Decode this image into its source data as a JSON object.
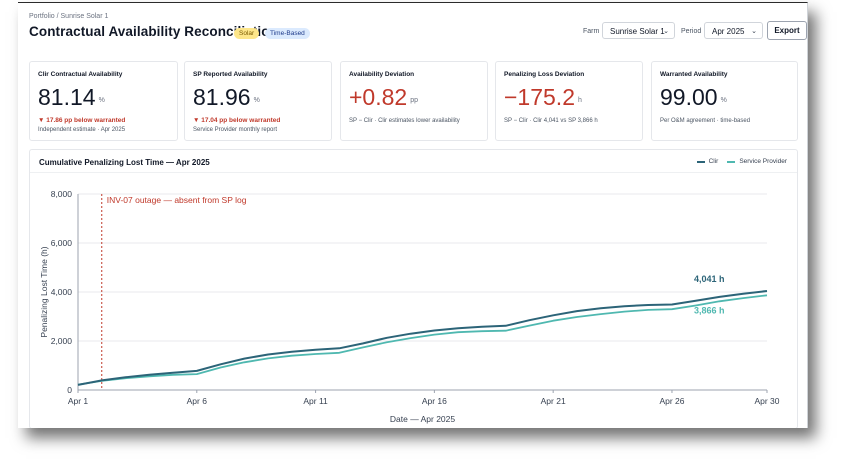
{
  "header": {
    "breadcrumb": "Portfolio / Sunrise Solar 1",
    "title": "Contractual Availability Reconciliation",
    "badges": [
      "Solar",
      "Time-Based"
    ]
  },
  "filters": {
    "farm_label": "Farm",
    "farm_value": "Sunrise Solar 1",
    "period_label": "Period",
    "period_value": "Apr 2025",
    "export_label": "Export"
  },
  "kpis": [
    {
      "label": "Clir Contractual Availability",
      "value": "81.14",
      "unit": "%",
      "delta": "▼ 17.86 pp below warranted",
      "sub": "Independent estimate · Apr 2025"
    },
    {
      "label": "SP Reported Availability",
      "value": "81.96",
      "unit": "%",
      "delta": "▼ 17.04 pp below warranted",
      "sub": "Service Provider monthly report"
    },
    {
      "label": "Availability Deviation",
      "value": "+0.82",
      "unit": "pp",
      "sub": "SP − Clir · Clir estimates lower availability"
    },
    {
      "label": "Penalizing Loss Deviation",
      "value": "−175.2",
      "unit": "h",
      "sub": "SP − Clir · Clir 4,041 vs SP 3,866 h"
    },
    {
      "label": "Warranted Availability",
      "value": "99.00",
      "unit": "%",
      "sub": "Per O&M agreement · time-based"
    }
  ],
  "colors": {
    "clir": "#2c6478",
    "service_provider": "#4fb8b0",
    "negative": "#c0392b"
  },
  "chart_data": {
    "type": "line",
    "title": "Cumulative Penalizing Lost Time — Apr 2025",
    "xlabel": "Date — Apr 2025",
    "ylabel": "Penalizing Lost Time (h)",
    "ylim": [
      0,
      8000
    ],
    "yticks": [
      "0",
      "2,000",
      "4,000",
      "6,000",
      "8,000"
    ],
    "xticks": [
      "Apr 1",
      "Apr 6",
      "Apr 11",
      "Apr 16",
      "Apr 21",
      "Apr 26",
      "Apr 30"
    ],
    "x": [
      1,
      2,
      3,
      4,
      5,
      6,
      7,
      8,
      9,
      10,
      11,
      12,
      13,
      14,
      15,
      16,
      17,
      18,
      19,
      20,
      21,
      22,
      23,
      24,
      25,
      26,
      27,
      28,
      29,
      30
    ],
    "series": [
      {
        "name": "Clir",
        "values": [
          210,
          390,
          520,
          620,
          700,
          780,
          1050,
          1280,
          1450,
          1560,
          1640,
          1700,
          1900,
          2130,
          2300,
          2430,
          2520,
          2580,
          2620,
          2850,
          3050,
          3220,
          3340,
          3420,
          3470,
          3490,
          3640,
          3800,
          3930,
          4041
        ]
      },
      {
        "name": "Service Provider",
        "values": [
          220,
          370,
          480,
          560,
          620,
          650,
          920,
          1130,
          1290,
          1400,
          1470,
          1520,
          1740,
          1950,
          2120,
          2260,
          2360,
          2400,
          2420,
          2630,
          2830,
          2980,
          3100,
          3200,
          3270,
          3300,
          3450,
          3620,
          3750,
          3866
        ]
      }
    ],
    "end_labels": [
      "4,041 h",
      "3,866 h"
    ],
    "annotation": "INV-07 outage — absent from SP log",
    "annotation_x": 2.0,
    "legend": "top-right",
    "grid": true
  }
}
